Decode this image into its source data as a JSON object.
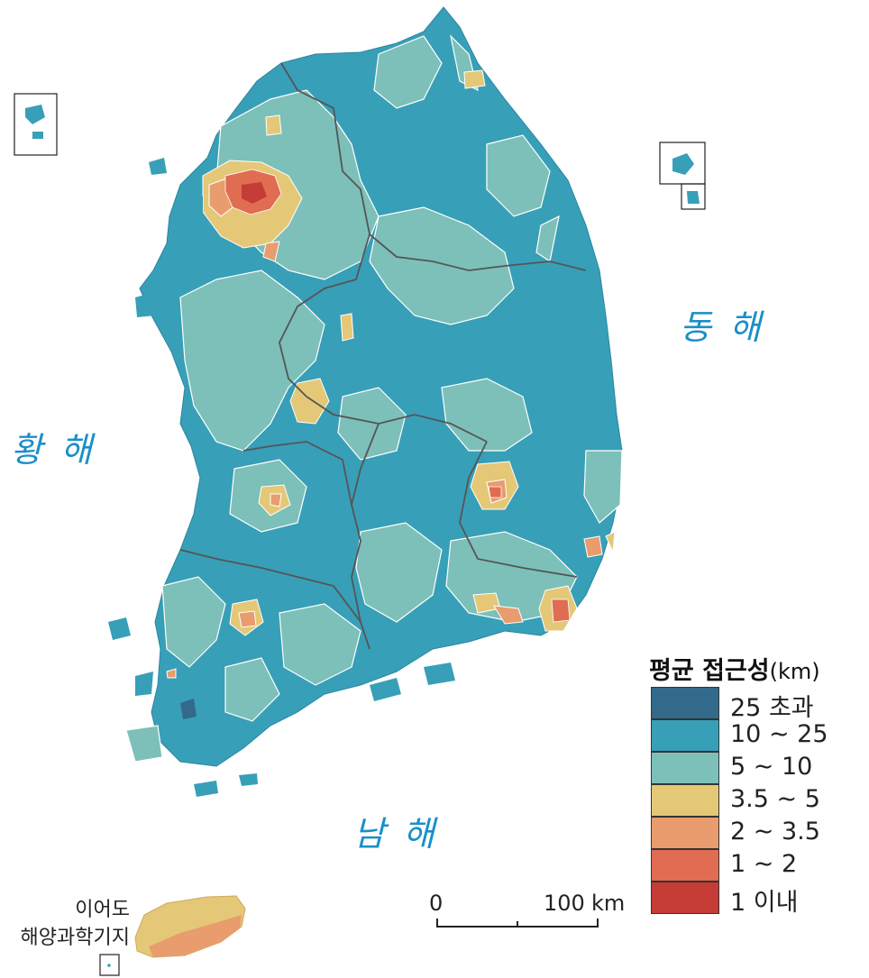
{
  "map": {
    "seas": {
      "east": "동 해",
      "west": "황 해",
      "south": "남 해"
    },
    "legend": {
      "title": "평균 접근성",
      "unit": "(km)",
      "classes": [
        {
          "label": "25 초과",
          "color": "#336a8b"
        },
        {
          "label": "10 ∼ 25",
          "color": "#389fb8"
        },
        {
          "label": "5 ∼ 10",
          "color": "#7cc0b9"
        },
        {
          "label": "3.5 ∼ 5",
          "color": "#e4c878"
        },
        {
          "label": "2 ∼ 3.5",
          "color": "#e99c6d"
        },
        {
          "label": "1 ∼ 2",
          "color": "#e06c52"
        },
        {
          "label": "1 이내",
          "color": "#c43c35"
        }
      ]
    },
    "scale_bar": {
      "start_label": "0",
      "end_label": "100",
      "unit": "km"
    },
    "inset": {
      "label_line1": "이어도",
      "label_line2": "해양과학기지"
    },
    "colors": {
      "sea_label": "#1a8fc9",
      "boundary_province": "#555555",
      "boundary_district": "#ffffff"
    }
  }
}
